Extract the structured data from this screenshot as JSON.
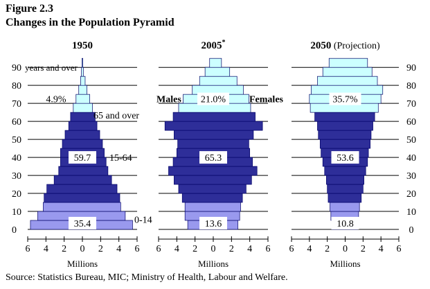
{
  "figure": {
    "label": "Figure 2.3",
    "title": "Changes in the Population Pyramid",
    "source": "Source:  Statistics Bureau, MIC;  Ministry of Health, Labour and Welfare."
  },
  "colors": {
    "young": "#9999ee",
    "working": "#2e2e99",
    "old": "#ccffff",
    "gridline": "#000000",
    "bar_edge": "#000066"
  },
  "chart_data": [
    {
      "type": "bar",
      "title": "1950",
      "title_suffix": "",
      "xlabel": "Millions",
      "x_ticks": [
        "6",
        "4",
        "2",
        "0",
        "2",
        "4",
        "6"
      ],
      "xlim": [
        -6,
        6
      ],
      "y_ticks": [
        "90",
        "80",
        "70",
        "60",
        "50",
        "40",
        "30",
        "20",
        "10",
        "0"
      ],
      "ylim": [
        0,
        92
      ],
      "categories": [
        "0-4",
        "5-9",
        "10-14",
        "15-19",
        "20-24",
        "25-29",
        "30-34",
        "35-39",
        "40-44",
        "45-49",
        "50-54",
        "55-59",
        "60-64",
        "65-69",
        "70-74",
        "75-79",
        "80-84",
        "85-89",
        "90-94"
      ],
      "series": [
        {
          "values": [
            5.7,
            4.9,
            4.3,
            4.2,
            3.9,
            3.1,
            2.6,
            2.4,
            2.4,
            2.2,
            1.9,
            1.5,
            1.3,
            1.0,
            0.7,
            0.4,
            0.2,
            0.1,
            0.05
          ]
        },
        {
          "values": [
            5.5,
            4.7,
            4.2,
            4.1,
            3.8,
            3.2,
            2.8,
            2.6,
            2.4,
            2.2,
            1.9,
            1.6,
            1.4,
            1.1,
            0.8,
            0.5,
            0.3,
            0.1,
            0.05
          ]
        }
      ],
      "band_share_labels": {
        "young": "35.4",
        "working": "59.7",
        "old": "4.9%"
      },
      "band_name_labels": {
        "young": "0-14",
        "working": "15-64",
        "old": "65 and over"
      },
      "age_unit_label": "years and over"
    },
    {
      "type": "bar",
      "title": "2005",
      "title_suffix": "*",
      "xlabel": "Millions",
      "x_ticks": [
        "6",
        "4",
        "2",
        "0",
        "2",
        "4",
        "6"
      ],
      "xlim": [
        -6,
        6
      ],
      "y_ticks": [
        "90",
        "80",
        "70",
        "60",
        "50",
        "40",
        "30",
        "20",
        "10",
        "0"
      ],
      "ylim": [
        0,
        92
      ],
      "categories": [
        "0-4",
        "5-9",
        "10-14",
        "15-19",
        "20-24",
        "25-29",
        "30-34",
        "35-39",
        "40-44",
        "45-49",
        "50-54",
        "55-59",
        "60-64",
        "65-69",
        "70-74",
        "75-79",
        "80-84",
        "85-89",
        "90-94"
      ],
      "series": [
        {
          "name": "Males",
          "values": [
            2.8,
            3.1,
            3.1,
            3.4,
            3.8,
            4.3,
            4.9,
            4.4,
            4.0,
            3.9,
            4.3,
            5.3,
            4.4,
            3.8,
            3.3,
            2.3,
            1.5,
            0.9,
            0.4
          ]
        },
        {
          "name": "Females",
          "values": [
            2.7,
            2.9,
            3.0,
            3.2,
            3.6,
            4.2,
            4.8,
            4.3,
            4.0,
            3.9,
            4.4,
            5.4,
            4.6,
            4.1,
            3.9,
            3.3,
            2.6,
            1.8,
            0.9
          ]
        }
      ],
      "band_share_labels": {
        "young": "13.6",
        "working": "65.3",
        "old": "21.0%"
      }
    },
    {
      "type": "bar",
      "title": "2050",
      "title_suffix": " (Projection)",
      "xlabel": "Millions",
      "x_ticks": [
        "6",
        "4",
        "2",
        "0",
        "2",
        "4",
        "6"
      ],
      "xlim": [
        -6,
        6
      ],
      "y_ticks": [
        "90",
        "80",
        "70",
        "60",
        "50",
        "40",
        "30",
        "20",
        "10",
        "0"
      ],
      "ylim": [
        0,
        92
      ],
      "right_axis": true,
      "categories": [
        "0-4",
        "5-9",
        "10-14",
        "15-19",
        "20-24",
        "25-29",
        "30-34",
        "35-39",
        "40-44",
        "45-49",
        "50-54",
        "55-59",
        "60-64",
        "65-69",
        "70-74",
        "75-79",
        "80-84",
        "85-89",
        "90-94"
      ],
      "series": [
        {
          "values": [
            1.5,
            1.6,
            1.7,
            1.9,
            2.0,
            2.1,
            2.3,
            2.5,
            2.7,
            2.8,
            3.0,
            3.1,
            3.4,
            3.9,
            4.0,
            3.8,
            3.1,
            2.5,
            1.8
          ]
        },
        {
          "values": [
            1.4,
            1.5,
            1.6,
            1.8,
            2.0,
            2.1,
            2.3,
            2.5,
            2.6,
            2.8,
            2.9,
            3.1,
            3.3,
            3.7,
            4.0,
            4.2,
            3.6,
            3.0,
            2.5
          ]
        }
      ],
      "band_share_labels": {
        "young": "10.8",
        "working": "53.6",
        "old": "35.7%"
      }
    }
  ]
}
